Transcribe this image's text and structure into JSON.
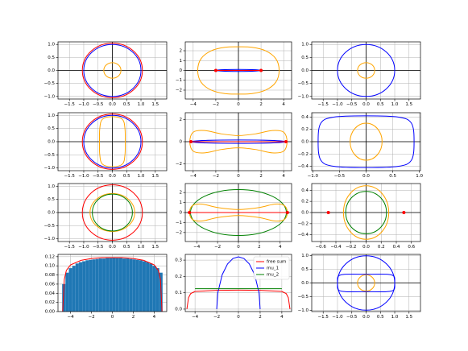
{
  "chart_data": [
    {
      "type": "line",
      "grid": true,
      "zero_lines": true,
      "xlim": [
        -1.9,
        1.9
      ],
      "ylim": [
        -1.1,
        1.1
      ],
      "xticks": [
        {
          "value": -1.5,
          "label": "−1.5"
        },
        {
          "value": -1.0,
          "label": "−1.0"
        },
        {
          "value": -0.5,
          "label": "−0.5"
        },
        {
          "value": 0,
          "label": "0.0"
        },
        0.5,
        {
          "value": 1,
          "label": "1.0"
        },
        1.5
      ],
      "yticks": [
        {
          "value": -1.0,
          "label": "−1.0"
        },
        {
          "value": -0.5,
          "label": "−0.5"
        },
        {
          "value": 0,
          "label": "0.0"
        },
        0.5,
        {
          "value": 1,
          "label": "1.0"
        }
      ],
      "ellipses": [
        {
          "color": "#ff0000",
          "cx": 0,
          "cy": 0,
          "rx": 1.05,
          "ry": 1.05
        },
        {
          "color": "#0000ff",
          "cx": 0,
          "cy": 0,
          "rx": 1,
          "ry": 1
        },
        {
          "color": "#ffa500",
          "cx": 0,
          "cy": 0,
          "rx": 0.3,
          "ry": 0.3
        }
      ],
      "series": []
    },
    {
      "type": "line",
      "grid": true,
      "zero_lines": true,
      "xlim": [
        -4.7,
        4.7
      ],
      "ylim": [
        -2.9,
        2.9
      ],
      "xticks": [
        {
          "value": -4,
          "label": "−4"
        },
        {
          "value": -2,
          "label": "−2"
        },
        0,
        2,
        4
      ],
      "yticks": [
        {
          "value": -2,
          "label": "−2"
        },
        {
          "value": -1,
          "label": "−1"
        },
        0,
        1,
        2
      ],
      "ellipses": [
        {
          "color": "#0000ff",
          "cx": 0,
          "cy": 0,
          "rx": 2,
          "ry": 0.1
        }
      ],
      "series": [
        {
          "color": "#ffa500",
          "closed": true,
          "x": [
            3.6,
            3.3,
            2.4,
            1.2,
            0,
            -1.2,
            -2.4,
            -3.3,
            -3.6,
            -3.3,
            -2.4,
            -1.2,
            0,
            1.2,
            2.4,
            3.3
          ],
          "values": [
            0,
            1.2,
            2.0,
            2.35,
            2.4,
            2.35,
            2.0,
            1.2,
            0,
            -1.2,
            -2.0,
            -2.35,
            -2.4,
            -2.35,
            -2.0,
            -1.2
          ]
        },
        {
          "color": "#ff0000",
          "markers": true,
          "x": [
            -2,
            2
          ],
          "values": [
            0,
            0
          ]
        }
      ]
    },
    {
      "type": "line",
      "grid": true,
      "zero_lines": true,
      "xlim": [
        -1.9,
        1.9
      ],
      "ylim": [
        -1.1,
        1.1
      ],
      "xticks": [
        {
          "value": -1.5,
          "label": "−1.5"
        },
        {
          "value": -1.0,
          "label": "−1.0"
        },
        {
          "value": -0.5,
          "label": "−0.5"
        },
        {
          "value": 0,
          "label": "0.0"
        },
        0.5,
        {
          "value": 1,
          "label": "1.0"
        },
        1.5
      ],
      "yticks": [
        {
          "value": -1.0,
          "label": "−1.0"
        },
        {
          "value": -0.5,
          "label": "−0.5"
        },
        {
          "value": 0,
          "label": "0.0"
        },
        0.5,
        {
          "value": 1,
          "label": "1.0"
        }
      ],
      "ellipses": [
        {
          "color": "#0000ff",
          "cx": 0,
          "cy": 0,
          "rx": 1,
          "ry": 1
        },
        {
          "color": "#ffa500",
          "cx": 0,
          "cy": 0,
          "rx": 0.3,
          "ry": 0.3
        }
      ],
      "series": []
    },
    {
      "type": "line",
      "grid": true,
      "zero_lines": true,
      "xlim": [
        -1.9,
        1.9
      ],
      "ylim": [
        -1.1,
        1.1
      ],
      "xticks": [
        {
          "value": -1.5,
          "label": "−1.5"
        },
        {
          "value": -1.0,
          "label": "−1.0"
        },
        {
          "value": -0.5,
          "label": "−0.5"
        },
        {
          "value": 0,
          "label": "0.0"
        },
        0.5,
        {
          "value": 1,
          "label": "1.0"
        },
        1.5
      ],
      "yticks": [
        {
          "value": -1.0,
          "label": "−1.0"
        },
        {
          "value": -0.5,
          "label": "−0.5"
        },
        {
          "value": 0,
          "label": "0.0"
        },
        0.5,
        {
          "value": 1,
          "label": "1.0"
        }
      ],
      "ellipses": [
        {
          "color": "#ff0000",
          "cx": 0,
          "cy": 0,
          "rx": 1.05,
          "ry": 1.05
        },
        {
          "color": "#0000ff",
          "cx": 0,
          "cy": 0,
          "rx": 1,
          "ry": 1
        }
      ],
      "series": [
        {
          "color": "#ffa500",
          "closed": true,
          "x": [
            0.45,
            0.44,
            0.35,
            0,
            -0.35,
            -0.44,
            -0.45,
            -0.44,
            -0.35,
            0,
            0.35,
            0.44
          ],
          "values": [
            0,
            0.5,
            0.85,
            0.95,
            0.85,
            0.5,
            0,
            -0.5,
            -0.85,
            -0.95,
            -0.85,
            -0.5
          ]
        }
      ]
    },
    {
      "type": "line",
      "grid": true,
      "zero_lines": true,
      "xlim": [
        -4.7,
        4.7
      ],
      "ylim": [
        -2.6,
        2.6
      ],
      "xticks": [
        {
          "value": -4,
          "label": "−4"
        },
        {
          "value": -2,
          "label": "−2"
        },
        0,
        2,
        4
      ],
      "yticks": [
        {
          "value": -2,
          "label": "−2"
        },
        0,
        2
      ],
      "ellipses": [
        {
          "color": "#0000ff",
          "cx": 0,
          "cy": 0,
          "rx": 4.2,
          "ry": 0.15
        }
      ],
      "series": [
        {
          "color": "#ffa500",
          "closed": true,
          "x": [
            4.3,
            4.0,
            3,
            1.5,
            0,
            -1.5,
            -3,
            -4.0,
            -4.3,
            -4.0,
            -3,
            -1.5,
            0,
            1.5,
            3,
            4.0
          ],
          "values": [
            0,
            0.85,
            1.0,
            0.7,
            0.55,
            0.7,
            1.0,
            0.85,
            0,
            -0.85,
            -1.0,
            -0.7,
            -0.55,
            -0.7,
            -1.0,
            -0.85
          ]
        },
        {
          "color": "#ff0000",
          "markers": true,
          "x": [
            -4.2,
            4.2
          ],
          "values": [
            0,
            0
          ]
        }
      ]
    },
    {
      "type": "line",
      "grid": true,
      "zero_lines": true,
      "xlim": [
        -1.02,
        1.02
      ],
      "ylim": [
        -0.47,
        0.47
      ],
      "xticks": [
        {
          "value": -1.0,
          "label": "−1.0"
        },
        {
          "value": -0.5,
          "label": "−0.5"
        },
        {
          "value": 0,
          "label": "0.0"
        },
        0.5,
        {
          "value": 1,
          "label": "1.0"
        }
      ],
      "yticks": [
        {
          "value": -0.4,
          "label": "−0.4"
        },
        {
          "value": -0.2,
          "label": "−0.2"
        },
        {
          "value": 0,
          "label": "0.0"
        },
        0.2,
        0.4
      ],
      "ellipses": [
        {
          "color": "#ffa500",
          "cx": 0,
          "cy": 0,
          "rx": 0.3,
          "ry": 0.3
        }
      ],
      "series": [
        {
          "color": "#0000ff",
          "closed": true,
          "x": [
            0.9,
            0.85,
            0.6,
            0,
            -0.6,
            -0.85,
            -0.9,
            -0.85,
            -0.6,
            0,
            0.6,
            0.85
          ],
          "values": [
            0,
            0.3,
            0.4,
            0.42,
            0.4,
            0.3,
            0,
            -0.3,
            -0.4,
            -0.42,
            -0.4,
            -0.3
          ]
        }
      ]
    },
    {
      "type": "line",
      "grid": true,
      "zero_lines": true,
      "xlim": [
        -1.9,
        1.9
      ],
      "ylim": [
        -1.1,
        1.1
      ],
      "xticks": [
        {
          "value": -1.5,
          "label": "−1.5"
        },
        {
          "value": -1.0,
          "label": "−1.0"
        },
        {
          "value": -0.5,
          "label": "−0.5"
        },
        {
          "value": 0,
          "label": "0.0"
        },
        0.5,
        {
          "value": 1,
          "label": "1.0"
        },
        1.5
      ],
      "yticks": [
        {
          "value": -1.0,
          "label": "−1.0"
        },
        {
          "value": -0.5,
          "label": "−0.5"
        },
        {
          "value": 0,
          "label": "0.0"
        },
        0.5,
        {
          "value": 1,
          "label": "1.0"
        }
      ],
      "ellipses": [
        {
          "color": "#ff0000",
          "cx": 0,
          "cy": 0,
          "rx": 1.05,
          "ry": 1.05
        },
        {
          "color": "#ffa500",
          "cx": 0,
          "cy": 0,
          "rx": 0.78,
          "ry": 0.72
        },
        {
          "color": "#008000",
          "cx": 0,
          "cy": 0,
          "rx": 0.7,
          "ry": 0.7
        }
      ],
      "series": []
    },
    {
      "type": "line",
      "grid": true,
      "zero_lines": true,
      "xlim": [
        -5.1,
        5.1
      ],
      "ylim": [
        -2.9,
        2.9
      ],
      "xticks": [
        {
          "value": -4,
          "label": "−4"
        },
        {
          "value": -2,
          "label": "−2"
        },
        0,
        2,
        4
      ],
      "yticks": [
        {
          "value": -2,
          "label": "−2"
        },
        {
          "value": -1,
          "label": "−1"
        },
        0,
        1,
        2
      ],
      "ellipses": [
        {
          "color": "#008000",
          "cx": 0,
          "cy": 0,
          "rx": 4.6,
          "ry": 2.3
        }
      ],
      "series": [
        {
          "color": "#ffa500",
          "closed": true,
          "x": [
            4.7,
            4.4,
            3.5,
            2,
            0,
            -2,
            -3.5,
            -4.4,
            -4.7,
            -4.4,
            -3.5,
            -2,
            0,
            2,
            3.5,
            4.4
          ],
          "values": [
            0,
            0.7,
            0.85,
            0.5,
            0.3,
            0.5,
            0.85,
            0.7,
            0,
            -0.7,
            -0.85,
            -0.5,
            -0.3,
            -0.5,
            -0.85,
            -0.7
          ]
        },
        {
          "color": "#ff0000",
          "markers": true,
          "x": [
            -4.7,
            4.7
          ],
          "values": [
            0,
            0
          ]
        }
      ]
    },
    {
      "type": "line",
      "grid": true,
      "zero_lines": true,
      "xlim": [
        -0.72,
        0.72
      ],
      "ylim": [
        -0.52,
        0.52
      ],
      "xticks": [
        {
          "value": -0.6,
          "label": "−0.6"
        },
        {
          "value": -0.4,
          "label": "−0.4"
        },
        {
          "value": -0.2,
          "label": "−0.2"
        },
        {
          "value": 0,
          "label": "0.0"
        },
        0.2,
        0.4,
        0.6
      ],
      "yticks": [
        {
          "value": -0.4,
          "label": "−0.4"
        },
        {
          "value": -0.2,
          "label": "−0.2"
        },
        {
          "value": 0,
          "label": "0.0"
        },
        0.2,
        0.4
      ],
      "ellipses": [
        {
          "color": "#ffa500",
          "cx": 0,
          "cy": 0,
          "rx": 0.3,
          "ry": 0.48
        },
        {
          "color": "#008000",
          "cx": 0,
          "cy": 0,
          "rx": 0.27,
          "ry": 0.38
        }
      ],
      "series": [
        {
          "color": "#ff0000",
          "markers": true,
          "line": false,
          "x": [
            -0.5,
            0.5
          ],
          "values": [
            0,
            0
          ]
        }
      ]
    },
    {
      "type": "histogram",
      "grid": true,
      "zero_lines": false,
      "xlim": [
        -5.2,
        5.2
      ],
      "ylim": [
        0,
        0.125
      ],
      "xticks": [
        {
          "value": -4,
          "label": "−4"
        },
        {
          "value": -2,
          "label": "−2"
        },
        0,
        2,
        4
      ],
      "yticks": [
        {
          "value": 0,
          "label": "0.00"
        },
        0.02,
        0.04,
        0.06,
        0.08,
        {
          "value": 0.1,
          "label": "0.10"
        },
        0.12
      ],
      "color": "#1f77b4",
      "bins": [
        -4.8,
        -4.48,
        -4.16,
        -3.84,
        -3.52,
        -3.2,
        -2.88,
        -2.56,
        -2.24,
        -1.92,
        -1.6,
        -1.28,
        -0.96,
        -0.64,
        -0.32,
        0,
        0.32,
        0.64,
        0.96,
        1.28,
        1.6,
        1.92,
        2.24,
        2.56,
        2.88,
        3.2,
        3.52,
        3.84,
        4.16,
        4.48,
        4.8
      ],
      "counts": [
        0.06,
        0.085,
        0.095,
        0.1,
        0.105,
        0.108,
        0.11,
        0.112,
        0.113,
        0.114,
        0.115,
        0.116,
        0.116,
        0.117,
        0.117,
        0.118,
        0.117,
        0.117,
        0.116,
        0.116,
        0.115,
        0.114,
        0.113,
        0.112,
        0.11,
        0.108,
        0.105,
        0.1,
        0.095,
        0.085
      ],
      "series": [
        {
          "color": "#ff0000",
          "x": [
            -4.75,
            -4.6,
            -4.4,
            -4,
            -3,
            -2,
            -1,
            0,
            1,
            2,
            3,
            4,
            4.4,
            4.6,
            4.75
          ],
          "values": [
            0,
            0.07,
            0.09,
            0.102,
            0.112,
            0.116,
            0.118,
            0.118,
            0.118,
            0.116,
            0.112,
            0.102,
            0.09,
            0.07,
            0
          ]
        }
      ]
    },
    {
      "type": "line",
      "grid": true,
      "zero_lines": false,
      "xlim": [
        -4.9,
        4.9
      ],
      "ylim": [
        -0.015,
        0.335
      ],
      "legend": "upper right",
      "xticks": [
        {
          "value": -4,
          "label": "−4"
        },
        {
          "value": -2,
          "label": "−2"
        },
        0,
        2,
        4
      ],
      "yticks": [
        {
          "value": 0,
          "label": "0.0"
        },
        0.1,
        0.2,
        0.3
      ],
      "ellipses": [],
      "series": [
        {
          "name": "free sum",
          "color": "#ff0000",
          "x": [
            -4.75,
            -4.6,
            -4.4,
            -4,
            -2,
            0,
            2,
            4,
            4.4,
            4.6,
            4.75
          ],
          "values": [
            0,
            0.07,
            0.095,
            0.108,
            0.115,
            0.116,
            0.115,
            0.108,
            0.095,
            0.07,
            0
          ]
        },
        {
          "name": "mu_1",
          "color": "#0000ff",
          "x": [
            -2,
            -1.9,
            -1.5,
            -1,
            -0.5,
            0,
            0.5,
            1,
            1.5,
            1.9,
            2
          ],
          "values": [
            0,
            0.1,
            0.21,
            0.277,
            0.31,
            0.32,
            0.31,
            0.277,
            0.21,
            0.1,
            0
          ]
        },
        {
          "name": "mu_2",
          "color": "#008000",
          "x": [
            -4,
            4
          ],
          "values": [
            0.125,
            0.125
          ]
        }
      ]
    },
    {
      "type": "line",
      "grid": true,
      "zero_lines": true,
      "xlim": [
        -1.9,
        1.9
      ],
      "ylim": [
        -1.05,
        1.05
      ],
      "xticks": [
        {
          "value": -1.5,
          "label": "−1.5"
        },
        {
          "value": -1.0,
          "label": "−1.0"
        },
        {
          "value": -0.5,
          "label": "−0.5"
        },
        {
          "value": 0,
          "label": "0.0"
        },
        0.5,
        {
          "value": 1,
          "label": "1.0"
        },
        1.5
      ],
      "yticks": [
        {
          "value": -1.0,
          "label": "−1.0"
        },
        {
          "value": -0.5,
          "label": "−0.5"
        },
        {
          "value": 0,
          "label": "0.0"
        },
        0.5,
        {
          "value": 1,
          "label": "1.0"
        }
      ],
      "ellipses": [
        {
          "color": "#0000ff",
          "cx": 0,
          "cy": 0,
          "rx": 1,
          "ry": 1
        },
        {
          "color": "#ffa500",
          "cx": 0,
          "cy": 0,
          "rx": 0.3,
          "ry": 0.3
        }
      ],
      "series": [
        {
          "color": "#0000ff",
          "closed": true,
          "x": [
            1,
            0.97,
            0.7,
            0,
            -0.7,
            -0.97,
            -1,
            -0.97,
            -0.7,
            0,
            0.7,
            0.97
          ],
          "values": [
            0,
            0.25,
            0.32,
            0.32,
            0.32,
            0.25,
            0,
            -0.25,
            -0.32,
            -0.32,
            -0.32,
            -0.25
          ]
        }
      ]
    }
  ]
}
